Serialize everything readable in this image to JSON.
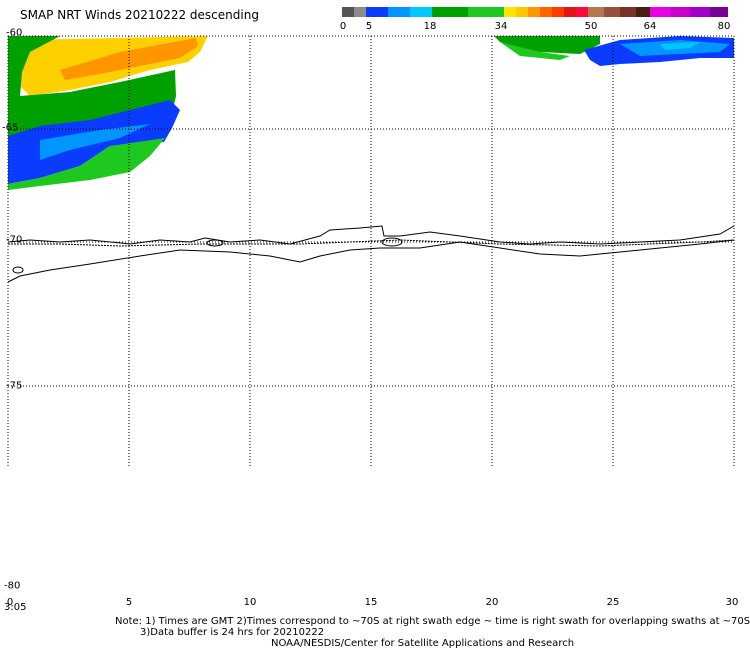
{
  "title": "SMAP NRT Winds  20210222 descending",
  "colorbar": {
    "labels": [
      "0",
      "5",
      "18",
      "34",
      "50",
      "64",
      "80"
    ],
    "segments": [
      {
        "color": "#555555",
        "w": 12
      },
      {
        "color": "#8c8c8c",
        "w": 12
      },
      {
        "color": "#0a3cff",
        "w": 22
      },
      {
        "color": "#0096ff",
        "w": 22
      },
      {
        "color": "#00c8ff",
        "w": 22
      },
      {
        "color": "#00a000",
        "w": 36
      },
      {
        "color": "#1ec81e",
        "w": 36
      },
      {
        "color": "#ffe600",
        "w": 12
      },
      {
        "color": "#ffc800",
        "w": 12
      },
      {
        "color": "#ff9600",
        "w": 12
      },
      {
        "color": "#ff6400",
        "w": 12
      },
      {
        "color": "#ff3c00",
        "w": 12
      },
      {
        "color": "#e61414",
        "w": 12
      },
      {
        "color": "#ff0a3c",
        "w": 12
      },
      {
        "color": "#b4784e",
        "w": 16
      },
      {
        "color": "#96503c",
        "w": 16
      },
      {
        "color": "#783228",
        "w": 16
      },
      {
        "color": "#4b1e14",
        "w": 14
      },
      {
        "color": "#e600e6",
        "w": 20
      },
      {
        "color": "#c800c8",
        "w": 20
      },
      {
        "color": "#a000c8",
        "w": 20
      },
      {
        "color": "#780096",
        "w": 18
      }
    ]
  },
  "axes": {
    "lat_ticks": [
      "-60",
      "-65",
      "-70",
      "-75",
      "-80"
    ],
    "lon_ticks": [
      "0",
      "5",
      "10",
      "15",
      "20",
      "25",
      "30"
    ],
    "time_label": "3:05"
  },
  "notes": {
    "line1": "Note: 1) Times are GMT 2)Times correspond to ~70S at right swath edge ~ time is right swath for overlapping swaths at ~70S",
    "line2": "3)Data buffer is 24 hrs for 20210222",
    "line3": "NOAA/NESDIS/Center for Satellite Applications and Research"
  }
}
